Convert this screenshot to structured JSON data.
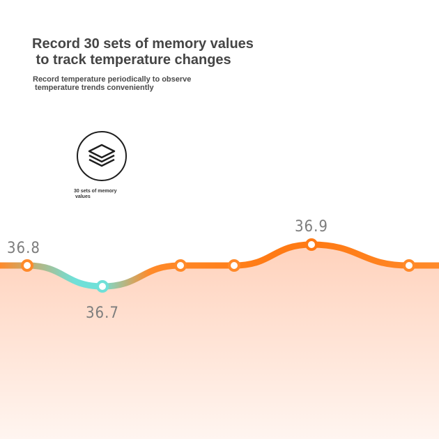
{
  "header": {
    "title": "Record 30 sets of memory values\n to track temperature changes",
    "subtitle": "Record temperature periodically to observe\n temperature trends conveniently"
  },
  "feature": {
    "icon": "layers-icon",
    "label": "30 sets of memory\n values"
  },
  "chart_data": {
    "type": "line",
    "points": [
      {
        "value": 36.8,
        "label": "36.8"
      },
      {
        "value": 36.7,
        "label": "36.7"
      },
      {
        "value": 36.8,
        "label": ""
      },
      {
        "value": 36.8,
        "label": ""
      },
      {
        "value": 36.9,
        "label": "36.9"
      },
      {
        "value": 36.8,
        "label": ""
      }
    ],
    "colors": {
      "line": "#ff8a2a",
      "low": "#6fe0d8",
      "high": "#ff7a14",
      "fill_top": "#ffd2bc",
      "fill_bottom": "#fff5f0"
    }
  }
}
